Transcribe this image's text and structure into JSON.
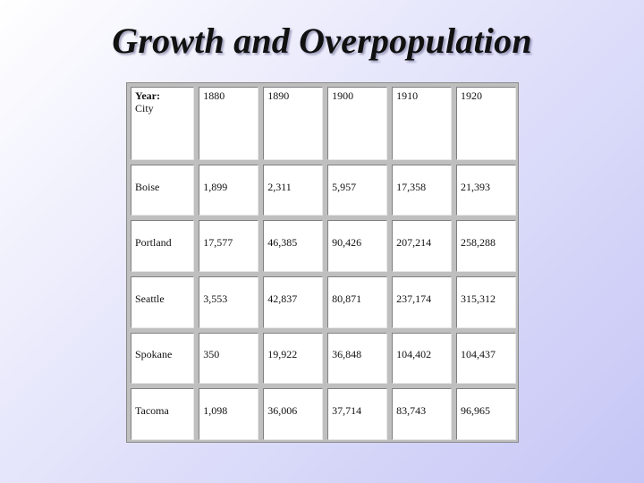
{
  "title": "Growth and Overpopulation",
  "table": {
    "header_line1": "Year:",
    "header_line2": "City",
    "years": [
      "1880",
      "1890",
      "1900",
      "1910",
      "1920"
    ],
    "rows": [
      {
        "city": "Boise",
        "values": [
          "1,899",
          "2,311",
          "5,957",
          "17,358",
          "21,393"
        ]
      },
      {
        "city": "Portland",
        "values": [
          "17,577",
          "46,385",
          "90,426",
          "207,214",
          "258,288"
        ]
      },
      {
        "city": "Seattle",
        "values": [
          "3,553",
          "42,837",
          "80,871",
          "237,174",
          "315,312"
        ]
      },
      {
        "city": "Spokane",
        "values": [
          "350",
          "19,922",
          "36,848",
          "104,402",
          "104,437"
        ]
      },
      {
        "city": "Tacoma",
        "values": [
          "1,098",
          "36,006",
          "37,714",
          "83,743",
          "96,965"
        ]
      }
    ]
  }
}
